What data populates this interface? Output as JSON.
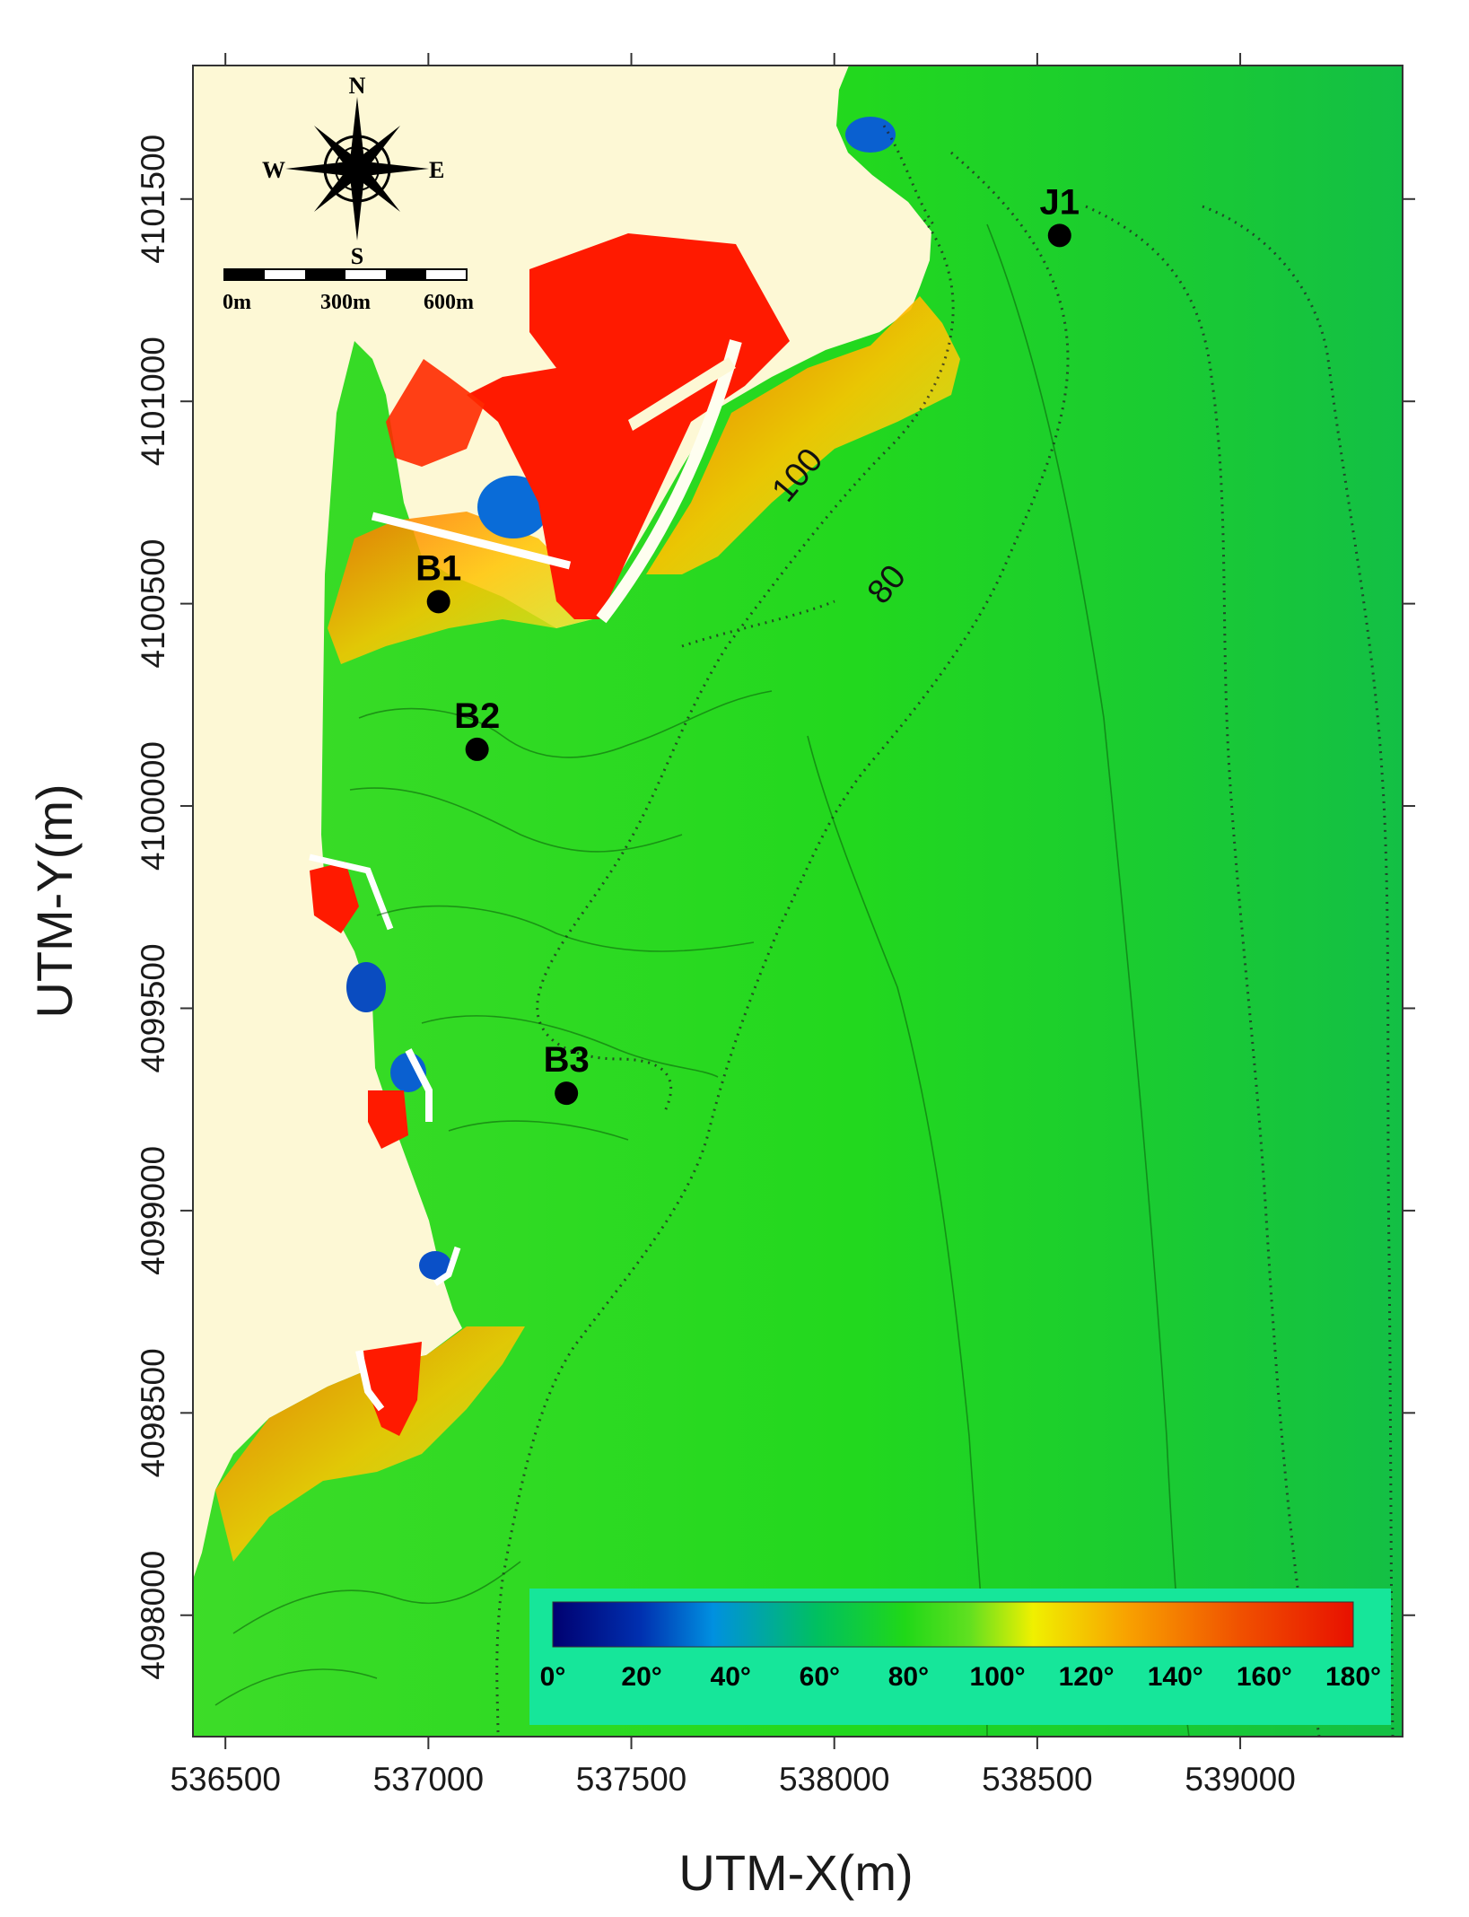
{
  "axes": {
    "x_title": "UTM-X(m)",
    "y_title": "UTM-Y(m)",
    "x_range": [
      536420,
      539400
    ],
    "y_range": [
      4097700,
      4101830
    ],
    "x_ticks": [
      "536500",
      "537000",
      "537500",
      "538000",
      "538500",
      "539000"
    ],
    "y_ticks": [
      "4098000",
      "4098500",
      "4099000",
      "4099500",
      "4100000",
      "4100500",
      "4101000",
      "4101500"
    ]
  },
  "stations": [
    {
      "label": "B1",
      "x": 537025,
      "y": 4100505
    },
    {
      "label": "B2",
      "x": 537120,
      "y": 4100140
    },
    {
      "label": "B3",
      "x": 537340,
      "y": 4099290
    },
    {
      "label": "J1",
      "x": 538555,
      "y": 4101410
    }
  ],
  "contour_labels": [
    {
      "text": "100",
      "x": 537930,
      "y": 4100800
    },
    {
      "text": "80",
      "x": 538150,
      "y": 4100530
    }
  ],
  "compass": {
    "north": "N",
    "south": "S",
    "east": "E",
    "west": "W"
  },
  "scale_bar": {
    "labels": [
      "0m",
      "300m",
      "600m"
    ]
  },
  "legend": {
    "labels": [
      "0°",
      "20°",
      "40°",
      "60°",
      "80°",
      "100°",
      "120°",
      "140°",
      "160°",
      "180°"
    ],
    "colors": [
      "#000080",
      "#0050d0",
      "#00b0c0",
      "#00d000",
      "#30e030",
      "#f0f000",
      "#f8a000",
      "#f05000",
      "#e81000"
    ]
  },
  "colors": {
    "land": "#fdf8d5",
    "sea": "#1ed81e",
    "sea_deep": "#14c43c",
    "harbor": "#ff1a00",
    "legend_bg": "#16e69a"
  }
}
